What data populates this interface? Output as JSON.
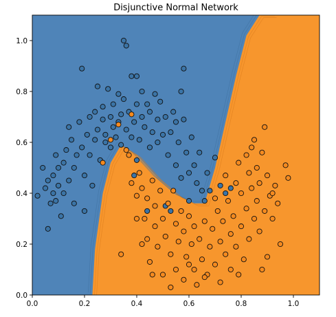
{
  "chart_data": {
    "type": "scatter",
    "title": "Disjunctive Normal Network",
    "xlabel": "",
    "ylabel": "",
    "xlim": [
      0.0,
      1.1
    ],
    "ylim": [
      0.0,
      1.1
    ],
    "xticks": [
      "0.0",
      "0.2",
      "0.4",
      "0.6",
      "0.8",
      "1.0"
    ],
    "yticks": [
      "0.0",
      "0.2",
      "0.4",
      "0.6",
      "0.8",
      "1.0"
    ],
    "grid": false,
    "legend": "none",
    "colors": {
      "class_0_region": "#4f84b8",
      "class_1_region": "#f7962d",
      "class_0_point": "#3b74a6",
      "class_1_point": "#f58a1f",
      "edge": "#111111"
    },
    "decision_boundary": {
      "x": [
        0.23,
        0.24,
        0.27,
        0.3,
        0.34,
        0.4,
        0.48,
        0.56,
        0.62,
        0.66,
        0.7,
        0.74,
        0.78,
        0.82,
        0.87,
        0.92
      ],
      "y": [
        0.0,
        0.18,
        0.4,
        0.52,
        0.59,
        0.55,
        0.46,
        0.39,
        0.36,
        0.36,
        0.5,
        0.68,
        0.86,
        1.02,
        1.1,
        1.1
      ]
    },
    "series": [
      {
        "values": [
          [
            0.02,
            0.39
          ],
          [
            0.04,
            0.5
          ],
          [
            0.05,
            0.42
          ],
          [
            0.06,
            0.45
          ],
          [
            0.06,
            0.26
          ],
          [
            0.07,
            0.36
          ],
          [
            0.08,
            0.4
          ],
          [
            0.08,
            0.47
          ],
          [
            0.09,
            0.37
          ],
          [
            0.09,
            0.55
          ],
          [
            0.1,
            0.43
          ],
          [
            0.1,
            0.5
          ],
          [
            0.11,
            0.31
          ],
          [
            0.12,
            0.4
          ],
          [
            0.12,
            0.52
          ],
          [
            0.13,
            0.57
          ],
          [
            0.14,
            0.45
          ],
          [
            0.14,
            0.66
          ],
          [
            0.15,
            0.61
          ],
          [
            0.16,
            0.36
          ],
          [
            0.16,
            0.5
          ],
          [
            0.17,
            0.55
          ],
          [
            0.18,
            0.68
          ],
          [
            0.19,
            0.58
          ],
          [
            0.19,
            0.89
          ],
          [
            0.2,
            0.33
          ],
          [
            0.2,
            0.47
          ],
          [
            0.21,
            0.63
          ],
          [
            0.22,
            0.55
          ],
          [
            0.22,
            0.7
          ],
          [
            0.23,
            0.43
          ],
          [
            0.24,
            0.61
          ],
          [
            0.24,
            0.72
          ],
          [
            0.25,
            0.65
          ],
          [
            0.25,
            0.82
          ],
          [
            0.26,
            0.53
          ],
          [
            0.27,
            0.74
          ],
          [
            0.27,
            0.69
          ],
          [
            0.28,
            0.63
          ],
          [
            0.28,
            0.6
          ],
          [
            0.29,
            0.81
          ],
          [
            0.3,
            0.7
          ],
          [
            0.3,
            0.58
          ],
          [
            0.31,
            0.75
          ],
          [
            0.31,
            0.66
          ],
          [
            0.32,
            0.62
          ],
          [
            0.33,
            0.79
          ],
          [
            0.33,
            0.68
          ],
          [
            0.34,
            0.71
          ],
          [
            0.34,
            0.59
          ],
          [
            0.35,
            1.0
          ],
          [
            0.35,
            0.77
          ],
          [
            0.36,
            0.98
          ],
          [
            0.36,
            0.65
          ],
          [
            0.37,
            0.72
          ],
          [
            0.38,
            0.86
          ],
          [
            0.38,
            0.62
          ],
          [
            0.39,
            0.68
          ],
          [
            0.4,
            0.86
          ],
          [
            0.4,
            0.75
          ],
          [
            0.4,
            0.53
          ],
          [
            0.41,
            0.61
          ],
          [
            0.42,
            0.7
          ],
          [
            0.42,
            0.8
          ],
          [
            0.43,
            0.66
          ],
          [
            0.44,
            0.75
          ],
          [
            0.45,
            0.58
          ],
          [
            0.45,
            0.72
          ],
          [
            0.46,
            0.64
          ],
          [
            0.47,
            0.79
          ],
          [
            0.48,
            0.69
          ],
          [
            0.48,
            0.6
          ],
          [
            0.49,
            0.76
          ],
          [
            0.5,
            0.63
          ],
          [
            0.51,
            0.7
          ],
          [
            0.52,
            0.55
          ],
          [
            0.53,
            0.64
          ],
          [
            0.54,
            0.72
          ],
          [
            0.55,
            0.51
          ],
          [
            0.55,
            0.68
          ],
          [
            0.56,
            0.6
          ],
          [
            0.57,
            0.46
          ],
          [
            0.57,
            0.8
          ],
          [
            0.58,
            0.69
          ],
          [
            0.58,
            0.89
          ],
          [
            0.59,
            0.56
          ],
          [
            0.6,
            0.48
          ],
          [
            0.61,
            0.62
          ],
          [
            0.62,
            0.51
          ],
          [
            0.63,
            0.44
          ],
          [
            0.64,
            0.56
          ],
          [
            0.65,
            0.41
          ],
          [
            0.66,
            0.37
          ],
          [
            0.67,
            0.48
          ],
          [
            0.68,
            0.41
          ],
          [
            0.7,
            0.54
          ],
          [
            0.72,
            0.43
          ],
          [
            0.74,
            0.4
          ],
          [
            0.76,
            0.42
          ],
          [
            0.39,
            0.47
          ],
          [
            0.51,
            0.35
          ],
          [
            0.53,
            0.33
          ],
          [
            0.6,
            0.37
          ],
          [
            0.44,
            0.33
          ]
        ]
      },
      {
        "values": [
          [
            0.33,
            0.67
          ],
          [
            0.38,
            0.71
          ],
          [
            0.34,
            0.16
          ],
          [
            0.37,
            0.55
          ],
          [
            0.38,
            0.44
          ],
          [
            0.4,
            0.39
          ],
          [
            0.41,
            0.48
          ],
          [
            0.42,
            0.42
          ],
          [
            0.43,
            0.3
          ],
          [
            0.44,
            0.22
          ],
          [
            0.44,
            0.38
          ],
          [
            0.45,
            0.13
          ],
          [
            0.46,
            0.45
          ],
          [
            0.47,
            0.35
          ],
          [
            0.47,
            0.27
          ],
          [
            0.48,
            0.19
          ],
          [
            0.49,
            0.41
          ],
          [
            0.5,
            0.08
          ],
          [
            0.5,
            0.3
          ],
          [
            0.51,
            0.23
          ],
          [
            0.52,
            0.36
          ],
          [
            0.53,
            0.16
          ],
          [
            0.54,
            0.41
          ],
          [
            0.55,
            0.28
          ],
          [
            0.55,
            0.1
          ],
          [
            0.56,
            0.21
          ],
          [
            0.57,
            0.33
          ],
          [
            0.58,
            0.06
          ],
          [
            0.58,
            0.25
          ],
          [
            0.59,
            0.15
          ],
          [
            0.6,
            0.31
          ],
          [
            0.61,
            0.2
          ],
          [
            0.62,
            0.1
          ],
          [
            0.62,
            0.27
          ],
          [
            0.63,
            0.04
          ],
          [
            0.64,
            0.22
          ],
          [
            0.65,
            0.14
          ],
          [
            0.66,
            0.29
          ],
          [
            0.67,
            0.08
          ],
          [
            0.68,
            0.19
          ],
          [
            0.69,
            0.26
          ],
          [
            0.7,
            0.12
          ],
          [
            0.71,
            0.33
          ],
          [
            0.72,
            0.21
          ],
          [
            0.72,
            0.05
          ],
          [
            0.73,
            0.29
          ],
          [
            0.74,
            0.16
          ],
          [
            0.75,
            0.37
          ],
          [
            0.76,
            0.24
          ],
          [
            0.76,
            0.1
          ],
          [
            0.77,
            0.31
          ],
          [
            0.78,
            0.44
          ],
          [
            0.78,
            0.19
          ],
          [
            0.79,
            0.52
          ],
          [
            0.8,
            0.27
          ],
          [
            0.8,
            0.4
          ],
          [
            0.81,
            0.14
          ],
          [
            0.82,
            0.34
          ],
          [
            0.82,
            0.55
          ],
          [
            0.83,
            0.48
          ],
          [
            0.83,
            0.22
          ],
          [
            0.84,
            0.42
          ],
          [
            0.85,
            0.3
          ],
          [
            0.85,
            0.61
          ],
          [
            0.86,
            0.5
          ],
          [
            0.86,
            0.37
          ],
          [
            0.87,
            0.25
          ],
          [
            0.87,
            0.44
          ],
          [
            0.88,
            0.56
          ],
          [
            0.89,
            0.33
          ],
          [
            0.89,
            0.66
          ],
          [
            0.9,
            0.47
          ],
          [
            0.91,
            0.39
          ],
          [
            0.92,
            0.3
          ],
          [
            0.93,
            0.43
          ],
          [
            0.95,
            0.2
          ],
          [
            0.97,
            0.51
          ],
          [
            0.98,
            0.46
          ],
          [
            0.9,
            0.15
          ],
          [
            0.79,
            0.08
          ],
          [
            0.27,
            0.52
          ],
          [
            0.3,
            0.61
          ],
          [
            0.36,
            0.57
          ],
          [
            0.4,
            0.3
          ],
          [
            0.42,
            0.2
          ],
          [
            0.46,
            0.08
          ],
          [
            0.53,
            0.03
          ],
          [
            0.6,
            0.12
          ],
          [
            0.66,
            0.07
          ],
          [
            0.7,
            0.38
          ],
          [
            0.74,
            0.47
          ],
          [
            0.84,
            0.58
          ],
          [
            0.88,
            0.1
          ],
          [
            0.92,
            0.4
          ],
          [
            0.94,
            0.36
          ]
        ]
      }
    ]
  }
}
